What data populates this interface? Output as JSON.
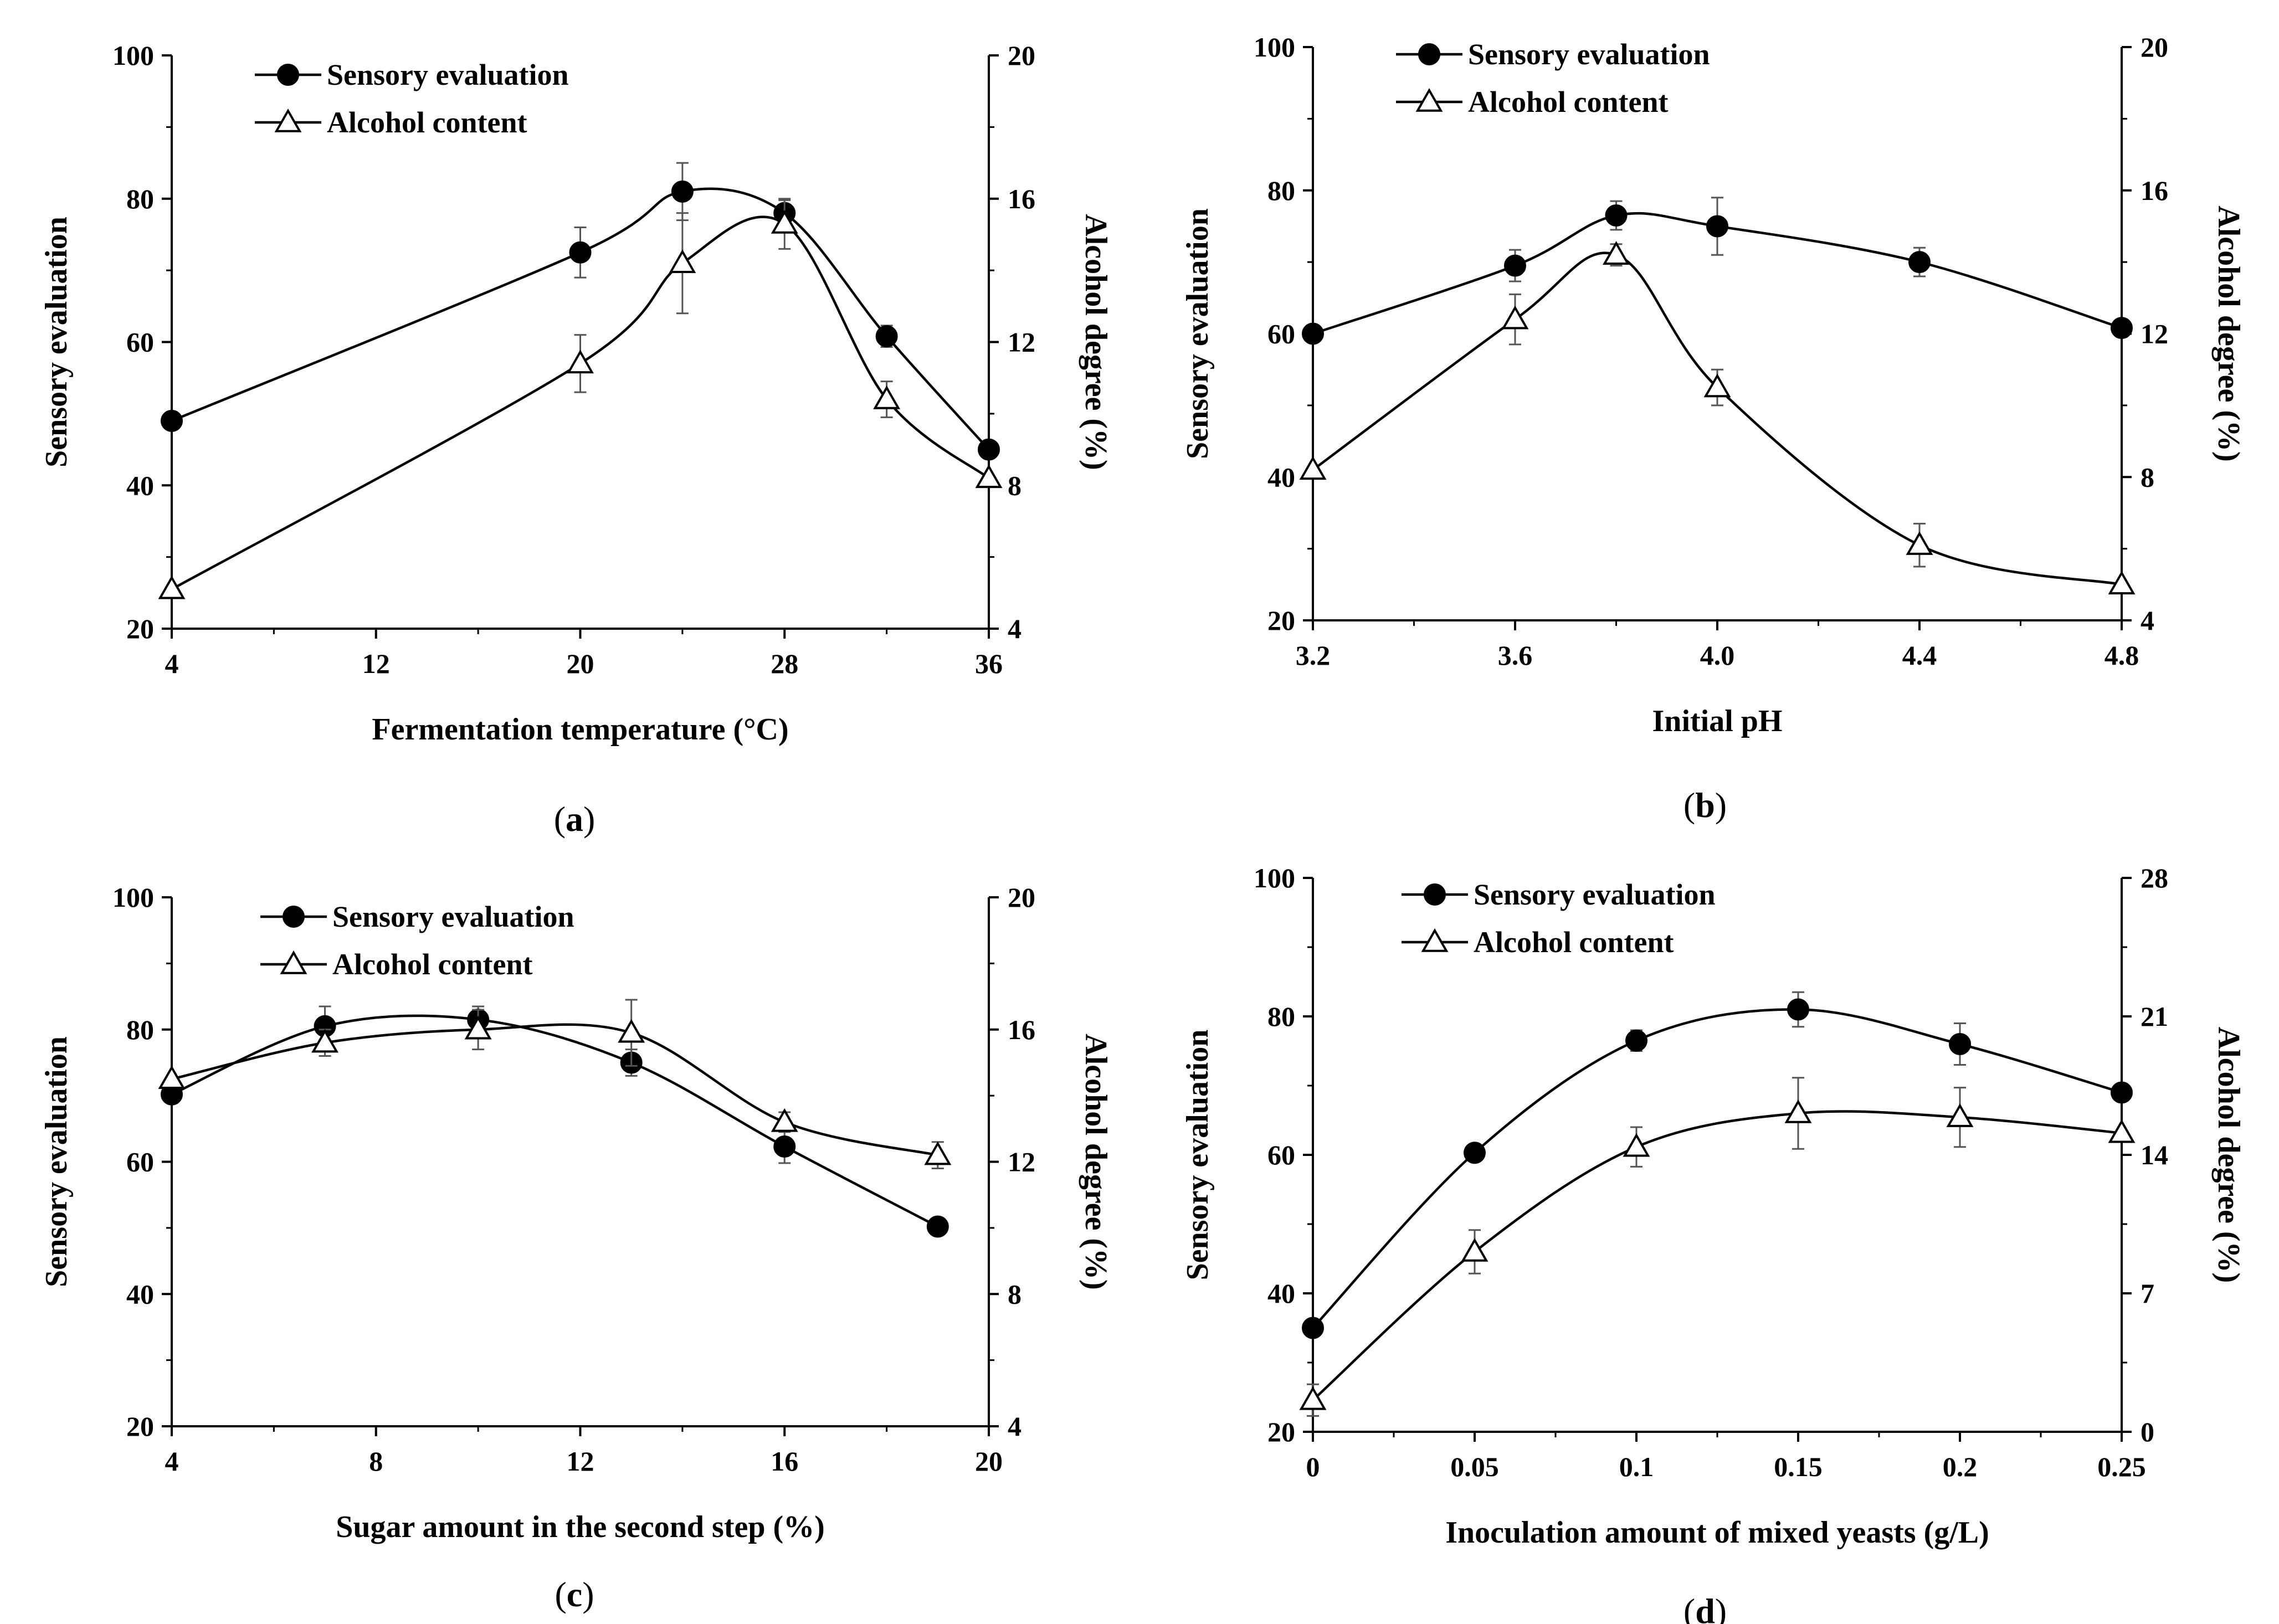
{
  "chart_data": [
    {
      "type": "line",
      "panel_label": "a",
      "xlabel": "Fermentation temperature (°C)",
      "ylabel": "Sensory evaluation",
      "y2label": "Alcohol degree (%)",
      "xlim": [
        4,
        36
      ],
      "xticks": [
        "4",
        "12",
        "20",
        "28",
        "36"
      ],
      "xtick_values": [
        4,
        12,
        20,
        28,
        36
      ],
      "ylim": [
        20,
        100
      ],
      "yticks": [
        "20",
        "40",
        "60",
        "80",
        "100"
      ],
      "y2lim": [
        4,
        20
      ],
      "y2ticks": [
        "4",
        "8",
        "12",
        "16",
        "20"
      ],
      "legend": [
        "Sensory evaluation",
        "Alcohol content"
      ],
      "series": [
        {
          "name": "Sensory evaluation",
          "axis": "left",
          "marker": "circle",
          "x": [
            4,
            20,
            24,
            28,
            32,
            36
          ],
          "y": [
            49,
            72.5,
            81,
            78,
            60.8,
            45
          ],
          "err": [
            0,
            3.5,
            4,
            1.8,
            1.5,
            0
          ]
        },
        {
          "name": "Alcohol content",
          "axis": "right",
          "marker": "triangle",
          "x": [
            4,
            20,
            24,
            28,
            32,
            36
          ],
          "y": [
            5.1,
            11.4,
            14.2,
            15.3,
            10.4,
            8.2
          ],
          "err": [
            0,
            0.8,
            1.4,
            0.7,
            0.5,
            0
          ]
        }
      ]
    },
    {
      "type": "line",
      "panel_label": "b",
      "xlabel": "Initial pH",
      "ylabel": "Sensory evaluation",
      "y2label": "Alcohol degree (%)",
      "xlim": [
        3.2,
        4.8
      ],
      "xticks": [
        "3.2",
        "3.6",
        "4.0",
        "4.4",
        "4.8"
      ],
      "xtick_values": [
        3.2,
        3.6,
        4.0,
        4.4,
        4.8
      ],
      "ylim": [
        20,
        100
      ],
      "yticks": [
        "20",
        "40",
        "60",
        "80",
        "100"
      ],
      "y2lim": [
        4,
        20
      ],
      "y2ticks": [
        "4",
        "8",
        "12",
        "16",
        "20"
      ],
      "legend": [
        "Sensory evaluation",
        "Alcohol content"
      ],
      "series": [
        {
          "name": "Sensory evaluation",
          "axis": "left",
          "marker": "circle",
          "x": [
            3.2,
            3.6,
            3.8,
            4.0,
            4.4,
            4.8
          ],
          "y": [
            60,
            69.5,
            76.5,
            75,
            70,
            60.8
          ],
          "err": [
            0,
            2.2,
            2,
            4,
            2,
            0
          ]
        },
        {
          "name": "Alcohol content",
          "axis": "right",
          "marker": "triangle",
          "x": [
            3.2,
            3.6,
            3.8,
            4.0,
            4.4,
            4.8
          ],
          "y": [
            8.2,
            12.4,
            14.2,
            10.5,
            6.1,
            5.0
          ],
          "err": [
            0,
            0.7,
            0.3,
            0.5,
            0.6,
            0
          ]
        }
      ]
    },
    {
      "type": "line",
      "panel_label": "c",
      "xlabel": "Sugar amount in the second step (%)",
      "ylabel": "Sensory evaluation",
      "y2label": "Alcohol degree (%)",
      "xlim": [
        4,
        20
      ],
      "xticks": [
        "4",
        "8",
        "12",
        "16",
        "20"
      ],
      "xtick_values": [
        4,
        8,
        12,
        16,
        20
      ],
      "ylim": [
        20,
        100
      ],
      "yticks": [
        "20",
        "40",
        "60",
        "80",
        "100"
      ],
      "y2lim": [
        4,
        20
      ],
      "y2ticks": [
        "4",
        "8",
        "12",
        "16",
        "20"
      ],
      "legend": [
        "Sensory evaluation",
        "Alcohol content"
      ],
      "series": [
        {
          "name": "Sensory evaluation",
          "axis": "left",
          "marker": "circle",
          "x": [
            4,
            7,
            10,
            13,
            16,
            19
          ],
          "y": [
            70.2,
            80.5,
            81.5,
            75,
            62.3,
            50.2
          ],
          "err": [
            0,
            3,
            2,
            2,
            2.5,
            0
          ]
        },
        {
          "name": "Alcohol content",
          "axis": "right",
          "marker": "triangle",
          "x": [
            4,
            7,
            10,
            13,
            16,
            19
          ],
          "y": [
            14.5,
            15.6,
            16.0,
            15.9,
            13.2,
            12.2
          ],
          "err": [
            0,
            0.4,
            0.6,
            1.0,
            0.3,
            0.4
          ]
        }
      ]
    },
    {
      "type": "line",
      "panel_label": "d",
      "xlabel": "Inoculation amount of mixed yeasts (g/L)",
      "ylabel": "Sensory evaluation",
      "y2label": "Alcohol degree (%)",
      "xlim": [
        0,
        0.25
      ],
      "xticks": [
        "0",
        "0.05",
        "0.1",
        "0.15",
        "0.2",
        "0.25"
      ],
      "xtick_values": [
        0,
        0.05,
        0.1,
        0.15,
        0.2,
        0.25
      ],
      "ylim": [
        20,
        100
      ],
      "yticks": [
        "20",
        "40",
        "60",
        "80",
        "100"
      ],
      "y2lim": [
        0,
        28
      ],
      "y2ticks": [
        "0",
        "7",
        "14",
        "21",
        "28"
      ],
      "legend": [
        "Sensory evaluation",
        "Alcohol content"
      ],
      "series": [
        {
          "name": "Sensory evaluation",
          "axis": "left",
          "marker": "circle",
          "x": [
            0,
            0.05,
            0.1,
            0.15,
            0.2,
            0.25
          ],
          "y": [
            35,
            60.3,
            76.5,
            81,
            76,
            69
          ],
          "err": [
            0,
            0,
            1.5,
            2.5,
            3,
            0
          ]
        },
        {
          "name": "Alcohol content",
          "axis": "right",
          "marker": "triangle",
          "x": [
            0,
            0.05,
            0.1,
            0.15,
            0.2,
            0.25
          ],
          "y": [
            1.6,
            9.1,
            14.4,
            16.1,
            15.9,
            15.1
          ],
          "err": [
            0.8,
            1.1,
            1.0,
            1.8,
            1.5,
            0
          ]
        }
      ]
    }
  ]
}
